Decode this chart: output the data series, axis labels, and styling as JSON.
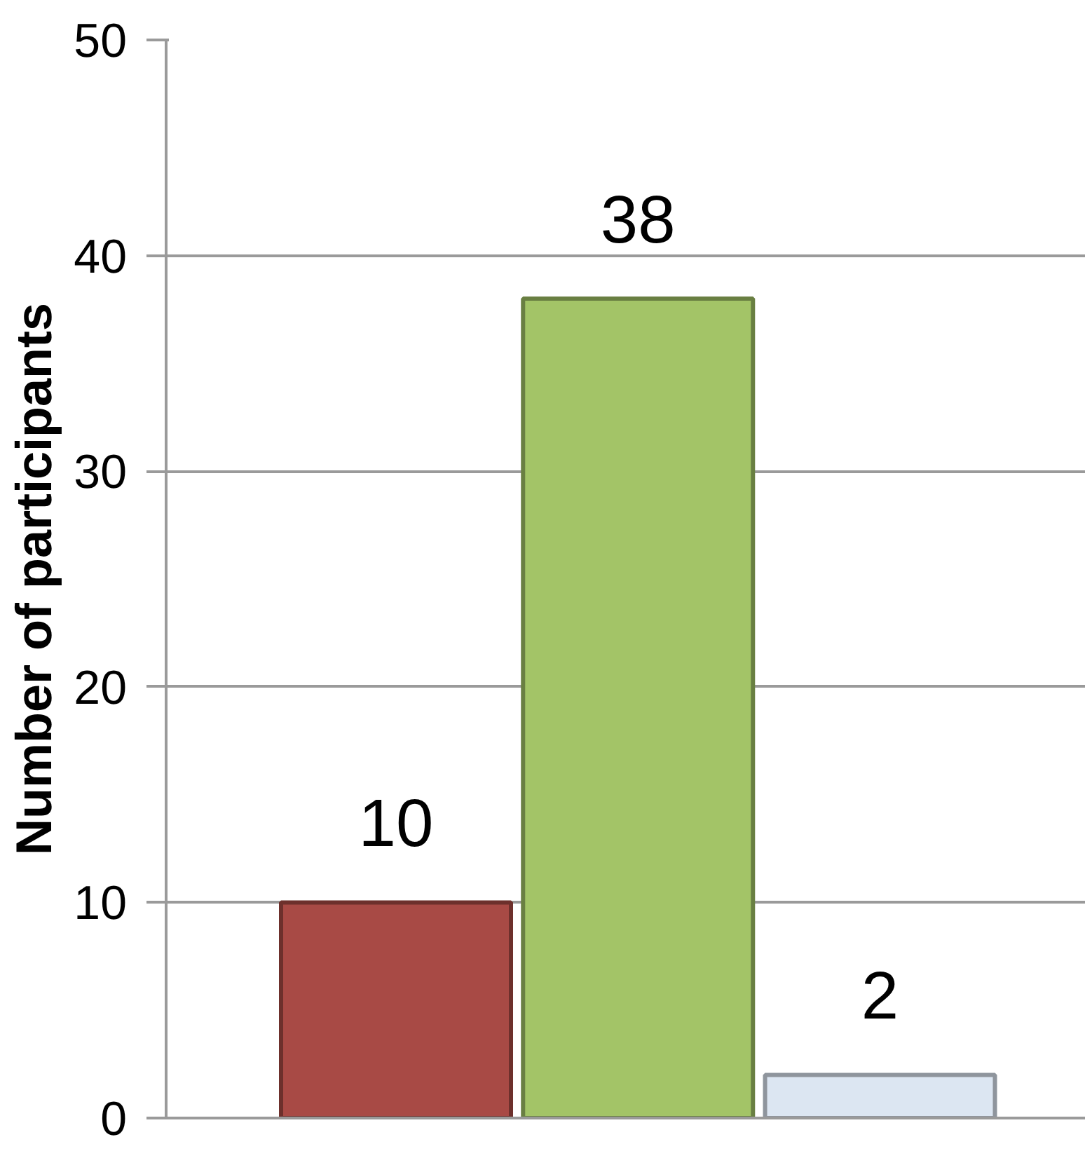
{
  "chart_data": {
    "type": "bar",
    "ylabel": "Number of participants",
    "categories": [
      null,
      null,
      null
    ],
    "values": [
      10,
      38,
      2
    ],
    "colors": [
      "#a84a45",
      "#a3c467",
      "#dce6f2"
    ],
    "ylim": [
      0,
      50
    ],
    "yticks": [
      0,
      10,
      20,
      30,
      40,
      50
    ],
    "grid": "y",
    "data_labels": true,
    "tick_labels": "y"
  }
}
